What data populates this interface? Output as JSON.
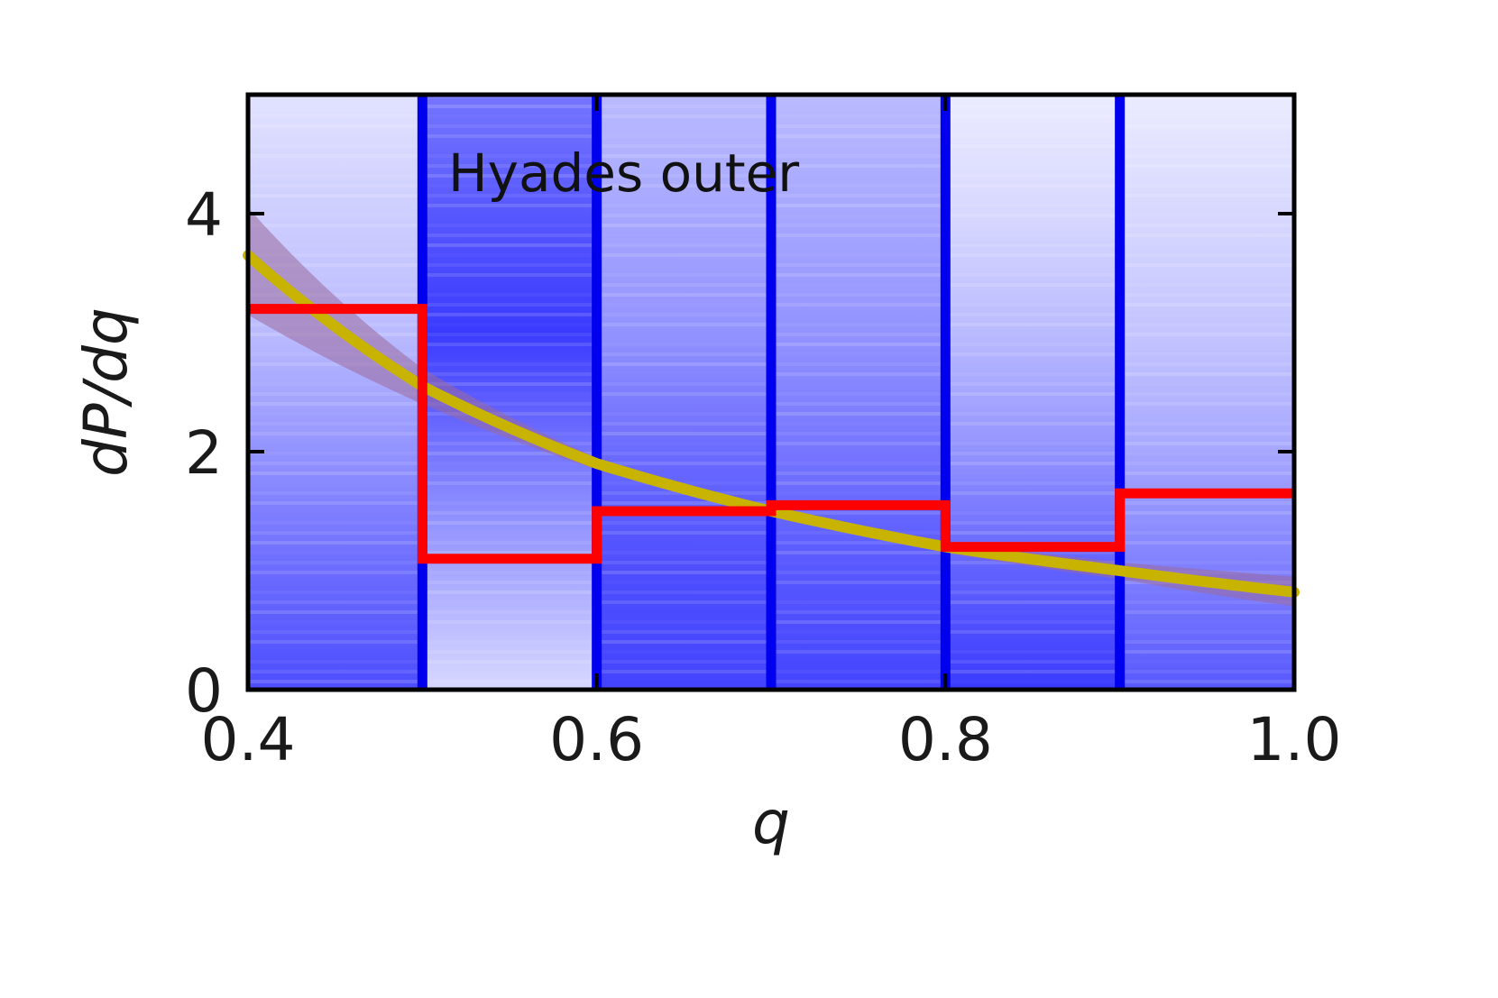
{
  "chart_data": {
    "type": "bar",
    "annotation": "Hyades outer",
    "xlabel": "q",
    "ylabel": "dP/dq",
    "xlim": [
      0.4,
      1.0
    ],
    "ylim": [
      0,
      5
    ],
    "xticks": [
      0.4,
      0.6,
      0.8,
      1.0
    ],
    "xtick_labels": [
      "0.4",
      "0.6",
      "0.8",
      "1.0"
    ],
    "yticks": [
      0,
      2,
      4
    ],
    "ytick_labels": [
      "0",
      "2",
      "4"
    ],
    "bin_edges": [
      0.4,
      0.5,
      0.6,
      0.7,
      0.8,
      0.9,
      1.0
    ],
    "series": [
      {
        "kind": "step",
        "values": [
          3.2,
          1.1,
          1.5,
          1.55,
          1.2,
          1.65
        ]
      },
      {
        "kind": "curve",
        "x": [
          0.4,
          0.5,
          0.6,
          0.7,
          0.8,
          0.9,
          1.0
        ],
        "y": [
          3.65,
          2.55,
          1.9,
          1.5,
          1.2,
          1.0,
          0.82
        ]
      }
    ],
    "curve_band": {
      "x": [
        0.4,
        0.5,
        0.6,
        0.7,
        0.8,
        0.9,
        1.0
      ],
      "upper": [
        4.05,
        2.7,
        1.95,
        1.5,
        1.25,
        1.07,
        0.95
      ],
      "lower": [
        3.15,
        2.4,
        1.85,
        1.5,
        1.15,
        0.93,
        0.7
      ]
    },
    "bin_density_shading": {
      "description_free_levels": [
        [
          0.15,
          0.25,
          0.35,
          0.55,
          0.75,
          0.9
        ],
        [
          0.7,
          0.85,
          1.0,
          0.7,
          0.45,
          0.2
        ],
        [
          0.35,
          0.45,
          0.55,
          0.75,
          0.9,
          0.95
        ],
        [
          0.35,
          0.45,
          0.55,
          0.7,
          0.85,
          0.95
        ],
        [
          0.1,
          0.2,
          0.35,
          0.55,
          0.8,
          1.0
        ],
        [
          0.1,
          0.2,
          0.3,
          0.45,
          0.65,
          0.85
        ]
      ]
    },
    "colors": {
      "step": "#ff0000",
      "curve": "#c8b400",
      "band": "#9a6a9a",
      "bin_edge": "#0000ee",
      "shade": "#3a3aff"
    },
    "grid": false
  }
}
